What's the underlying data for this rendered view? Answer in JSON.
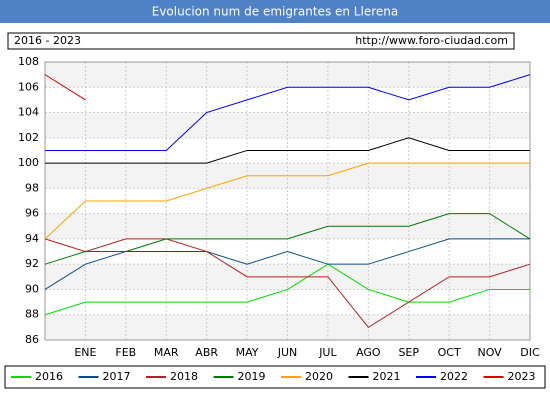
{
  "chart_data": {
    "type": "line",
    "title": "Evolucion num de emigrantes en Llerena",
    "subtitle": "2016 - 2023",
    "source": "http://www.foro-ciudad.com",
    "categories": [
      null,
      "ENE",
      "FEB",
      "MAR",
      "ABR",
      "MAY",
      "JUN",
      "JUL",
      "AGO",
      "SEP",
      "OCT",
      "NOV",
      "DIC"
    ],
    "series": [
      {
        "name": "2016",
        "color": "#00dd00",
        "values": [
          88,
          89,
          89,
          89,
          89,
          89,
          90,
          92,
          90,
          89,
          89,
          90,
          90
        ]
      },
      {
        "name": "2017",
        "color": "#0b4d8c",
        "values": [
          90,
          92,
          93,
          93,
          93,
          92,
          93,
          92,
          92,
          93,
          94,
          94,
          94
        ]
      },
      {
        "name": "2018",
        "color": "#b22222",
        "values": [
          94,
          93,
          94,
          94,
          93,
          91,
          91,
          91,
          87,
          89,
          91,
          91,
          92
        ]
      },
      {
        "name": "2019",
        "color": "#007a00",
        "values": [
          92,
          93,
          93,
          94,
          94,
          94,
          94,
          95,
          95,
          95,
          96,
          96,
          94
        ]
      },
      {
        "name": "2020",
        "color": "#ffa500",
        "values": [
          94,
          97,
          97,
          97,
          98,
          99,
          99,
          99,
          100,
          100,
          100,
          100,
          100
        ]
      },
      {
        "name": "2021",
        "color": "#000000",
        "values": [
          100,
          100,
          100,
          100,
          100,
          101,
          101,
          101,
          101,
          102,
          101,
          101,
          101
        ]
      },
      {
        "name": "2022",
        "color": "#0000ff",
        "values": [
          101,
          101,
          101,
          101,
          104,
          105,
          106,
          106,
          106,
          105,
          106,
          106,
          107
        ]
      },
      {
        "name": "2023",
        "color": "#e00000",
        "values": [
          107,
          105,
          null,
          null,
          null,
          null,
          null,
          null,
          null,
          null,
          null,
          null,
          null
        ]
      }
    ],
    "ylim": [
      86,
      108
    ],
    "yticks": [
      86,
      88,
      90,
      92,
      94,
      96,
      98,
      100,
      102,
      104,
      106,
      108
    ],
    "grid": true
  }
}
